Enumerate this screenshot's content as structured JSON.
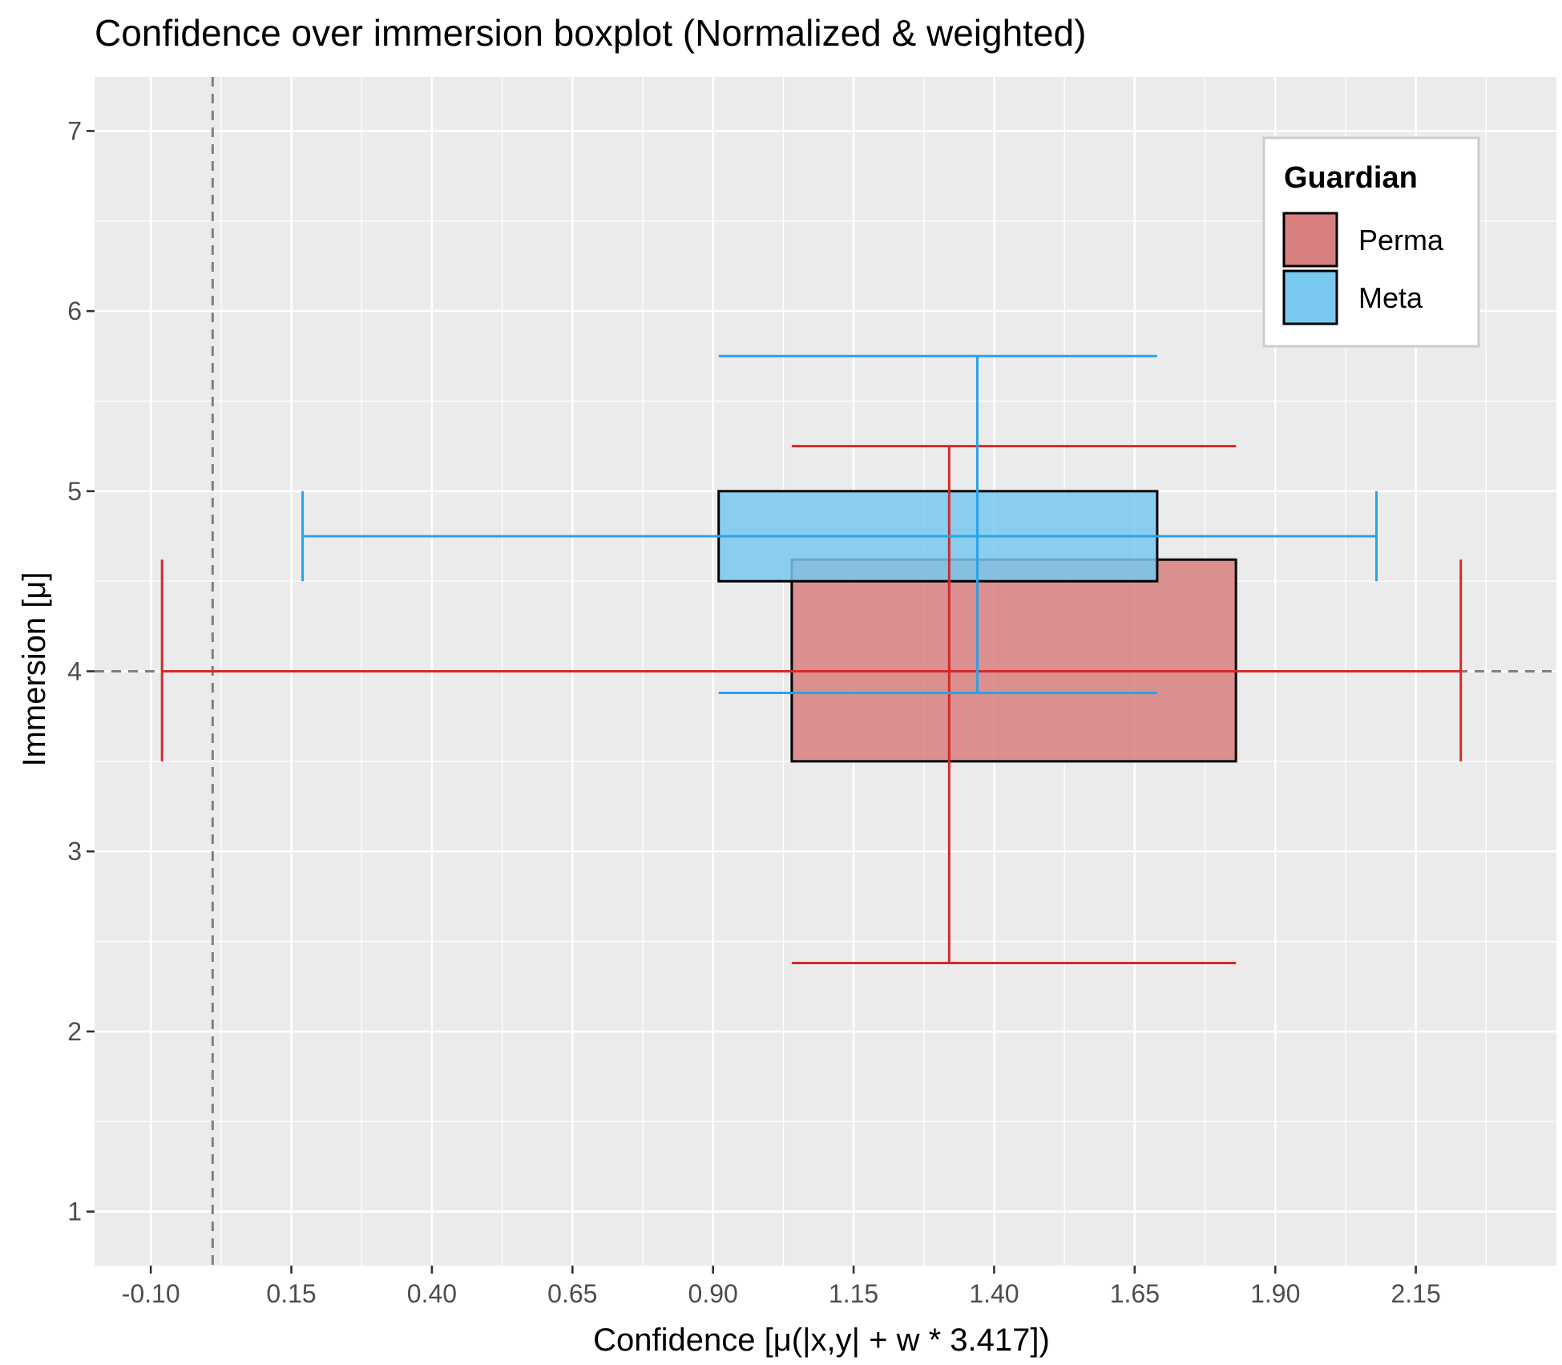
{
  "chart_data": {
    "type": "boxplot",
    "title": "Confidence over immersion boxplot (Normalized & weighted)",
    "xlabel": "Confidence [μ(|x,y| + w * 3.417])",
    "ylabel": "Immersion [μ]",
    "xlim": [
      -0.2,
      2.4
    ],
    "ylim": [
      0.7,
      7.3
    ],
    "x_ticks": [
      "-0.10",
      "0.15",
      "0.40",
      "0.65",
      "0.90",
      "1.15",
      "1.40",
      "1.65",
      "1.90",
      "2.15"
    ],
    "x_tick_values": [
      -0.1,
      0.15,
      0.4,
      0.65,
      0.9,
      1.15,
      1.4,
      1.65,
      1.9,
      2.15
    ],
    "y_ticks": [
      "1",
      "2",
      "3",
      "4",
      "5",
      "6",
      "7"
    ],
    "y_tick_values": [
      1,
      2,
      3,
      4,
      5,
      6,
      7
    ],
    "grid": true,
    "reference_lines": {
      "vertical_x": 0.01,
      "horizontal_y": 4.0
    },
    "legend": {
      "title": "Guardian",
      "position": "top-right"
    },
    "series": [
      {
        "name": "Perma",
        "fill": "#d87f7f",
        "line": "#d42a2a",
        "box": {
          "x_min": 1.04,
          "x_max": 1.83,
          "y_min": 3.5,
          "y_max": 4.62
        },
        "h_whisker": {
          "x_min": -0.08,
          "x_max": 2.23,
          "y": 4.0,
          "cap_y_min": 3.5,
          "cap_y_max": 4.62
        },
        "v_whisker": {
          "x": 1.32,
          "y_min": 2.38,
          "y_max": 5.25,
          "cap_x_min": 1.04,
          "cap_x_max": 1.83
        }
      },
      {
        "name": "Meta",
        "fill": "#78c8f0",
        "line": "#29a3e8",
        "box": {
          "x_min": 0.91,
          "x_max": 1.69,
          "y_min": 4.5,
          "y_max": 5.0
        },
        "h_whisker": {
          "x_min": 0.17,
          "x_max": 2.08,
          "y": 4.75,
          "cap_y_min": 4.5,
          "cap_y_max": 5.0
        },
        "v_whisker": {
          "x": 1.37,
          "y_min": 3.88,
          "y_max": 5.75,
          "cap_x_min": 0.91,
          "cap_x_max": 1.69
        }
      }
    ]
  }
}
